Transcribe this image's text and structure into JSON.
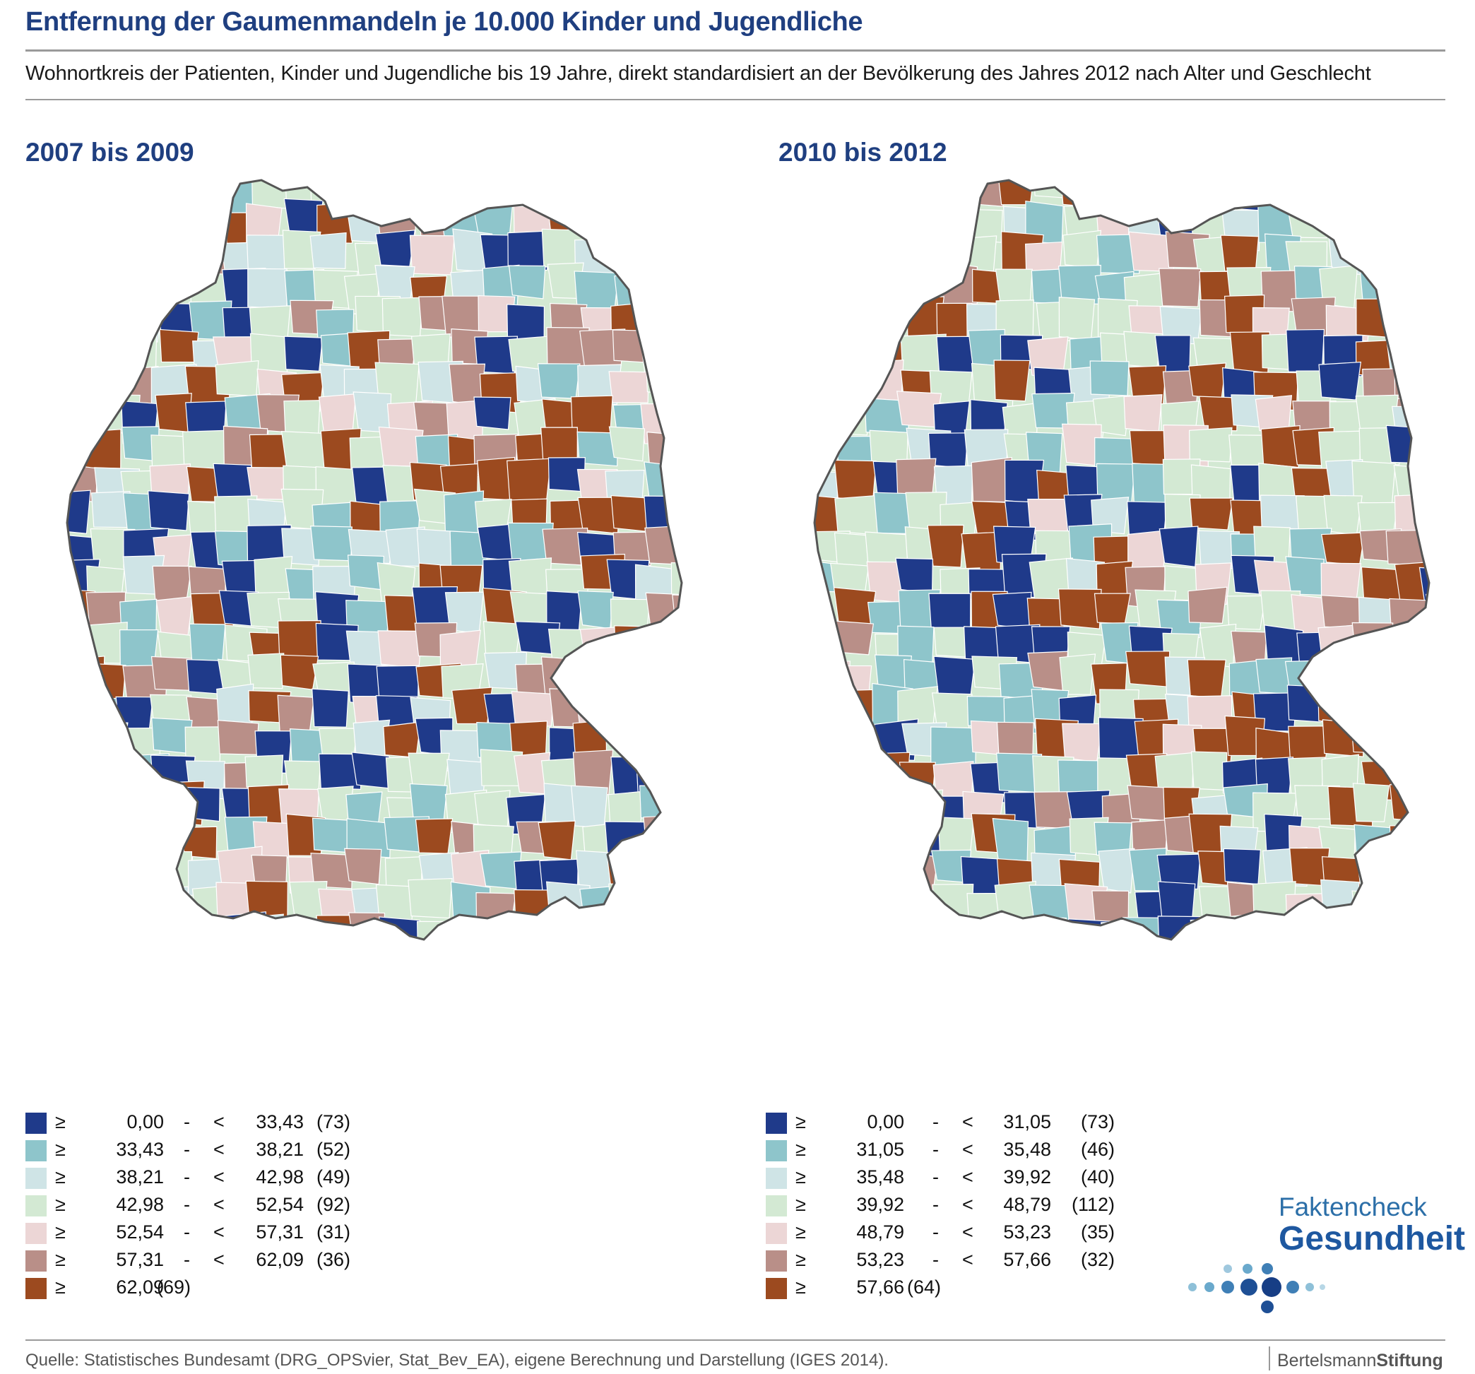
{
  "header": {
    "title": "Entfernung der Gaumenmandeln je 10.000 Kinder und Jugendliche",
    "subtitle": "Wohnortkreis der Patienten, Kinder und Jugendliche bis 19 Jahre, direkt standardisiert an der Bevölkerung des Jahres 2012 nach Alter und Geschlecht"
  },
  "colors": {
    "class1": "#1f3a8a",
    "class2": "#8ec5cb",
    "class3": "#cfe4e6",
    "class4": "#d3e9d3",
    "class5": "#ecd6d6",
    "class6": "#b98f88",
    "class7": "#9c4a1f",
    "border": "#555555"
  },
  "panels": [
    {
      "title": "2007 bis 2009",
      "legend": [
        {
          "ge": "≥",
          "low": "0,00",
          "dash": "-",
          "lt": "<",
          "high": "33,43",
          "count": "(73)"
        },
        {
          "ge": "≥",
          "low": "33,43",
          "dash": "-",
          "lt": "<",
          "high": "38,21",
          "count": "(52)"
        },
        {
          "ge": "≥",
          "low": "38,21",
          "dash": "-",
          "lt": "<",
          "high": "42,98",
          "count": "(49)"
        },
        {
          "ge": "≥",
          "low": "42,98",
          "dash": "-",
          "lt": "<",
          "high": "52,54",
          "count": "(92)"
        },
        {
          "ge": "≥",
          "low": "52,54",
          "dash": "-",
          "lt": "<",
          "high": "57,31",
          "count": "(31)"
        },
        {
          "ge": "≥",
          "low": "57,31",
          "dash": "-",
          "lt": "<",
          "high": "62,09",
          "count": "(36)"
        },
        {
          "ge": "≥",
          "low": "62,09",
          "dash": "",
          "lt": "",
          "high": "",
          "count": "(69)"
        }
      ]
    },
    {
      "title": "2010 bis 2012",
      "legend": [
        {
          "ge": "≥",
          "low": "0,00",
          "dash": "-",
          "lt": "<",
          "high": "31,05",
          "count": "(73)"
        },
        {
          "ge": "≥",
          "low": "31,05",
          "dash": "-",
          "lt": "<",
          "high": "35,48",
          "count": "(46)"
        },
        {
          "ge": "≥",
          "low": "35,48",
          "dash": "-",
          "lt": "<",
          "high": "39,92",
          "count": "(40)"
        },
        {
          "ge": "≥",
          "low": "39,92",
          "dash": "-",
          "lt": "<",
          "high": "48,79",
          "count": "(112)"
        },
        {
          "ge": "≥",
          "low": "48,79",
          "dash": "-",
          "lt": "<",
          "high": "53,23",
          "count": "(35)"
        },
        {
          "ge": "≥",
          "low": "53,23",
          "dash": "-",
          "lt": "<",
          "high": "57,66",
          "count": "(32)"
        },
        {
          "ge": "≥",
          "low": "57,66",
          "dash": "",
          "lt": "",
          "high": "",
          "count": "(64)"
        }
      ]
    }
  ],
  "logo": {
    "line1": "Faktencheck",
    "line2": "Gesundheit"
  },
  "footer": {
    "source": "Quelle: Statistisches Bundesamt (DRG_OPSvier, Stat_Bev_EA), eigene Berechnung und Darstellung (IGES 2014).",
    "publisher_a": "Bertelsmann",
    "publisher_b": "Stiftung"
  }
}
